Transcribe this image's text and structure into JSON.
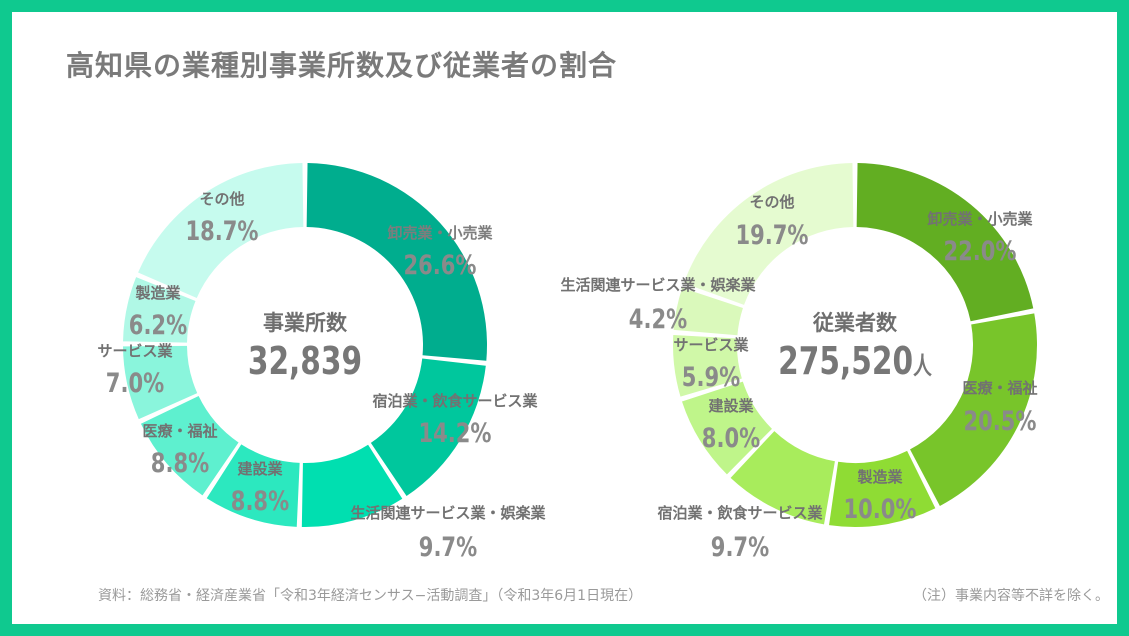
{
  "title": "高知県の業種別事業所数及び従業者の割合",
  "footer": {
    "source": "資料：総務省・経済産業省「令和3年経済センサス−活動調査」（令和3年6月1日現在）",
    "note": "（注）事業内容等不詳を除く。"
  },
  "chart_data": [
    {
      "type": "pie",
      "donut": true,
      "center_label": "事業所数",
      "center_value": "32,839",
      "center_unit": "",
      "unit": "%",
      "colors": [
        "#00ad8e",
        "#00c79d",
        "#00dfb0",
        "#2ce8bf",
        "#5ef0cf",
        "#8af5dc",
        "#b0f8e6",
        "#c6fbee"
      ],
      "slices": [
        {
          "label": "卸売業・小売業",
          "value": 26.6
        },
        {
          "label": "宿泊業・飲食サービス業",
          "value": 14.2
        },
        {
          "label": "生活関連サービス業・娯楽業",
          "value": 9.7
        },
        {
          "label": "建設業",
          "value": 8.8
        },
        {
          "label": "医療・福祉",
          "value": 8.8
        },
        {
          "label": "サービス業",
          "value": 7.0
        },
        {
          "label": "製造業",
          "value": 6.2
        },
        {
          "label": "その他",
          "value": 18.7
        }
      ]
    },
    {
      "type": "pie",
      "donut": true,
      "center_label": "従業者数",
      "center_value": "275,520",
      "center_unit": "人",
      "unit": "%",
      "colors": [
        "#62ae22",
        "#78c52a",
        "#8fdc34",
        "#a8ec5c",
        "#bff58a",
        "#d0f8a8",
        "#daf9bb",
        "#e5fbd0"
      ],
      "slices": [
        {
          "label": "卸売業・小売業",
          "value": 22.0
        },
        {
          "label": "医療・福祉",
          "value": 20.5
        },
        {
          "label": "製造業",
          "value": 10.0
        },
        {
          "label": "宿泊業・飲食サービス業",
          "value": 9.7
        },
        {
          "label": "建設業",
          "value": 8.0
        },
        {
          "label": "サービス業",
          "value": 5.9
        },
        {
          "label": "生活関連サービス業・娯楽業",
          "value": 4.2
        },
        {
          "label": "その他",
          "value": 19.7
        }
      ]
    }
  ]
}
